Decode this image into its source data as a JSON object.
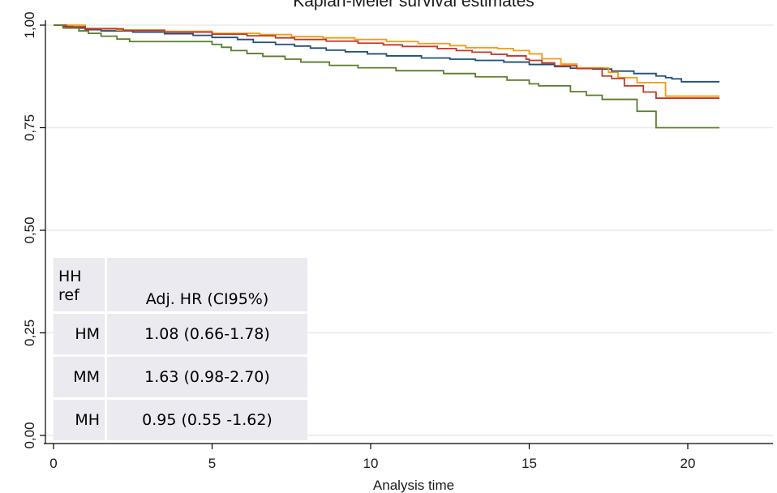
{
  "chart_data": {
    "type": "line",
    "title": "Kaplan-Meier survival estimates",
    "xlabel": "Analysis time",
    "ylabel": "",
    "xlim": [
      0,
      21
    ],
    "ylim": [
      0,
      1
    ],
    "x_ticks": [
      "0",
      "5",
      "10",
      "15",
      "20"
    ],
    "x_tick_values": [
      0,
      5,
      10,
      15,
      20
    ],
    "y_ticks": [
      "0,00",
      "0,25",
      "0,50",
      "0,75",
      "1,00"
    ],
    "y_tick_values": [
      0,
      0.25,
      0.5,
      0.75,
      1.0
    ],
    "grid": true,
    "step": true,
    "series": [
      {
        "color": "#1f4e79",
        "points": [
          [
            0,
            1.0
          ],
          [
            0.3,
            0.997
          ],
          [
            0.6,
            0.993
          ],
          [
            1.0,
            0.989
          ],
          [
            1.5,
            0.986
          ],
          [
            2.5,
            0.983
          ],
          [
            3.5,
            0.979
          ],
          [
            4.4,
            0.975
          ],
          [
            5.0,
            0.97
          ],
          [
            5.8,
            0.965
          ],
          [
            6.3,
            0.958
          ],
          [
            7.0,
            0.953
          ],
          [
            7.6,
            0.949
          ],
          [
            8.1,
            0.944
          ],
          [
            8.6,
            0.939
          ],
          [
            9.2,
            0.935
          ],
          [
            9.9,
            0.93
          ],
          [
            10.5,
            0.925
          ],
          [
            11.6,
            0.92
          ],
          [
            12.5,
            0.917
          ],
          [
            13.3,
            0.914
          ],
          [
            14.2,
            0.91
          ],
          [
            15.0,
            0.904
          ],
          [
            15.8,
            0.899
          ],
          [
            16.3,
            0.895
          ],
          [
            17.0,
            0.893
          ],
          [
            17.6,
            0.888
          ],
          [
            18.3,
            0.882
          ],
          [
            19.0,
            0.876
          ],
          [
            19.3,
            0.872
          ],
          [
            19.5,
            0.869
          ],
          [
            19.8,
            0.862
          ],
          [
            21,
            0.862
          ]
        ]
      },
      {
        "color": "#f39c12",
        "points": [
          [
            0,
            1.0
          ],
          [
            1.0,
            0.992
          ],
          [
            2.0,
            0.988
          ],
          [
            3.5,
            0.985
          ],
          [
            5.0,
            0.98
          ],
          [
            6.5,
            0.977
          ],
          [
            7.5,
            0.972
          ],
          [
            8.5,
            0.969
          ],
          [
            9.5,
            0.965
          ],
          [
            10.5,
            0.96
          ],
          [
            11.5,
            0.955
          ],
          [
            12.5,
            0.95
          ],
          [
            13.0,
            0.945
          ],
          [
            14.0,
            0.943
          ],
          [
            14.5,
            0.938
          ],
          [
            15.0,
            0.93
          ],
          [
            15.4,
            0.918
          ],
          [
            16.0,
            0.905
          ],
          [
            16.5,
            0.896
          ],
          [
            17.5,
            0.885
          ],
          [
            17.8,
            0.872
          ],
          [
            18.4,
            0.86
          ],
          [
            19.3,
            0.827
          ],
          [
            21,
            0.827
          ]
        ]
      },
      {
        "color": "#c0392b",
        "points": [
          [
            0,
            1.0
          ],
          [
            0.4,
            0.996
          ],
          [
            1.0,
            0.991
          ],
          [
            2.2,
            0.987
          ],
          [
            3.5,
            0.983
          ],
          [
            5.0,
            0.978
          ],
          [
            6.1,
            0.974
          ],
          [
            7.0,
            0.969
          ],
          [
            7.6,
            0.965
          ],
          [
            8.6,
            0.961
          ],
          [
            9.6,
            0.956
          ],
          [
            10.4,
            0.952
          ],
          [
            11.0,
            0.948
          ],
          [
            12.1,
            0.943
          ],
          [
            12.7,
            0.938
          ],
          [
            13.2,
            0.934
          ],
          [
            13.8,
            0.929
          ],
          [
            14.3,
            0.925
          ],
          [
            14.9,
            0.917
          ],
          [
            15.0,
            0.914
          ],
          [
            15.4,
            0.908
          ],
          [
            15.8,
            0.901
          ],
          [
            16.5,
            0.894
          ],
          [
            17.3,
            0.876
          ],
          [
            17.6,
            0.87
          ],
          [
            18.0,
            0.852
          ],
          [
            18.6,
            0.837
          ],
          [
            19.0,
            0.822
          ],
          [
            21,
            0.822
          ]
        ]
      },
      {
        "color": "#5a7d2a",
        "points": [
          [
            0,
            1.0
          ],
          [
            0.3,
            0.993
          ],
          [
            0.8,
            0.986
          ],
          [
            1.1,
            0.98
          ],
          [
            1.5,
            0.973
          ],
          [
            2.0,
            0.966
          ],
          [
            2.4,
            0.96
          ],
          [
            5.0,
            0.953
          ],
          [
            5.3,
            0.946
          ],
          [
            5.6,
            0.938
          ],
          [
            6.1,
            0.931
          ],
          [
            6.6,
            0.924
          ],
          [
            7.3,
            0.917
          ],
          [
            7.8,
            0.91
          ],
          [
            8.7,
            0.902
          ],
          [
            9.6,
            0.896
          ],
          [
            10.8,
            0.889
          ],
          [
            12.3,
            0.882
          ],
          [
            13.3,
            0.874
          ],
          [
            14.3,
            0.866
          ],
          [
            15.0,
            0.857
          ],
          [
            15.3,
            0.852
          ],
          [
            16.3,
            0.838
          ],
          [
            16.8,
            0.829
          ],
          [
            17.3,
            0.819
          ],
          [
            18.4,
            0.79
          ],
          [
            19.0,
            0.75
          ],
          [
            21,
            0.75
          ]
        ]
      }
    ]
  },
  "table": {
    "header_col1": [
      "HH",
      "ref"
    ],
    "header_col2": "Adj. HR (CI95%)",
    "rows": [
      {
        "group": "HM",
        "value": "1.08 (0.66-1.78)"
      },
      {
        "group": "MM",
        "value": "1.63 (0.98-2.70)"
      },
      {
        "group": "MH",
        "value": "0.95 (0.55 -1.62)"
      }
    ]
  }
}
